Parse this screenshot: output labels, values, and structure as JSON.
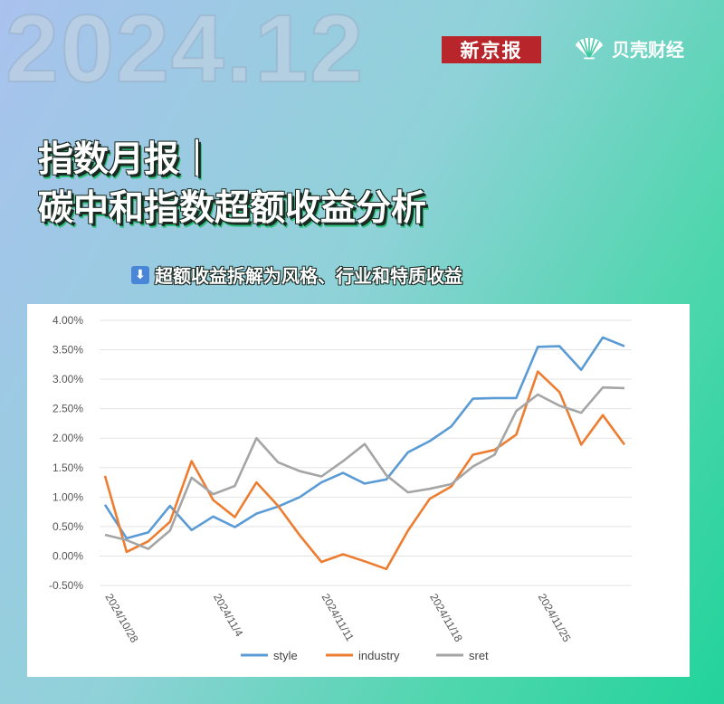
{
  "header": {
    "big_date": "2024.12",
    "brand_left": "新京报",
    "brand_right": "贝壳财经"
  },
  "title": {
    "line1": "指数月报｜",
    "line2": "碳中和指数超额收益分析"
  },
  "subtitle": {
    "icon": "down-arrow-icon",
    "text": "超额收益拆解为风格、行业和特质收益"
  },
  "chart_data": {
    "type": "line",
    "title": "",
    "xlabel": "",
    "ylabel": "",
    "ylim": [
      -0.5,
      4.0
    ],
    "ytick_labels": [
      "4.00%",
      "3.50%",
      "3.00%",
      "2.50%",
      "2.00%",
      "1.50%",
      "1.00%",
      "0.50%",
      "0.00%",
      "-0.50%"
    ],
    "ytick_values": [
      4.0,
      3.5,
      3.0,
      2.5,
      2.0,
      1.5,
      1.0,
      0.5,
      0.0,
      -0.5
    ],
    "x": [
      "2024/10/28",
      "2024/10/29",
      "2024/10/30",
      "2024/10/31",
      "2024/11/1",
      "2024/11/4",
      "2024/11/5",
      "2024/11/6",
      "2024/11/7",
      "2024/11/8",
      "2024/11/11",
      "2024/11/12",
      "2024/11/13",
      "2024/11/14",
      "2024/11/15",
      "2024/11/18",
      "2024/11/19",
      "2024/11/20",
      "2024/11/21",
      "2024/11/22",
      "2024/11/25",
      "2024/11/26",
      "2024/11/27",
      "2024/11/28",
      "2024/11/29"
    ],
    "xtick_labels": [
      "2024/10/28",
      "2024/11/4",
      "2024/11/11",
      "2024/11/18",
      "2024/11/25"
    ],
    "xtick_indices": [
      0,
      5,
      10,
      15,
      20
    ],
    "grid": true,
    "legend_position": "bottom",
    "series": [
      {
        "name": "style",
        "color": "#5b9bd5",
        "values": [
          0.87,
          0.3,
          0.4,
          0.85,
          0.44,
          0.67,
          0.49,
          0.72,
          0.84,
          1.0,
          1.25,
          1.41,
          1.23,
          1.3,
          1.76,
          1.95,
          2.2,
          2.67,
          2.68,
          2.68,
          3.55,
          3.56,
          3.16,
          3.71,
          3.56
        ]
      },
      {
        "name": "industry",
        "color": "#ed7d31",
        "values": [
          1.36,
          0.07,
          0.25,
          0.58,
          1.61,
          0.95,
          0.66,
          1.25,
          0.85,
          0.35,
          -0.1,
          0.03,
          -0.09,
          -0.22,
          0.43,
          0.97,
          1.18,
          1.72,
          1.8,
          2.06,
          3.13,
          2.78,
          1.89,
          2.39,
          1.89
        ]
      },
      {
        "name": "sret",
        "color": "#a5a5a5",
        "values": [
          0.36,
          0.27,
          0.12,
          0.43,
          1.33,
          1.05,
          1.19,
          2.0,
          1.59,
          1.44,
          1.35,
          1.61,
          1.9,
          1.37,
          1.08,
          1.14,
          1.22,
          1.52,
          1.72,
          2.46,
          2.74,
          2.55,
          2.43,
          2.86,
          2.85
        ]
      }
    ]
  }
}
